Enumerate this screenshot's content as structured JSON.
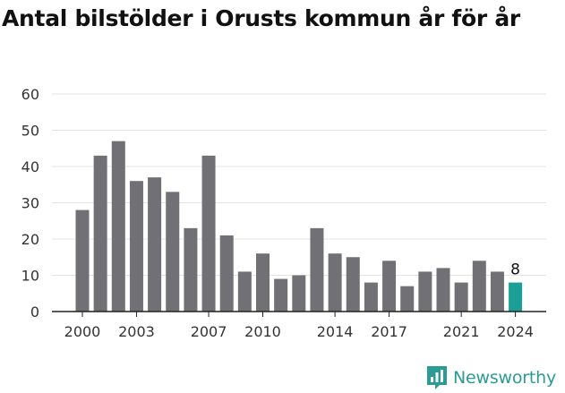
{
  "title": "Antal bilstölder i Orusts kommun år för år",
  "brand": {
    "name": "Newsworthy",
    "icon": "newsworthy-logo-icon",
    "color": "#2a9c94"
  },
  "chart_data": {
    "type": "bar",
    "title": "Antal bilstölder i Orusts kommun år för år",
    "xlabel": "",
    "ylabel": "",
    "categories": [
      "2000",
      "2001",
      "2002",
      "2003",
      "2004",
      "2005",
      "2006",
      "2007",
      "2008",
      "2009",
      "2010",
      "2011",
      "2012",
      "2013",
      "2014",
      "2015",
      "2016",
      "2017",
      "2018",
      "2019",
      "2020",
      "2021",
      "2022",
      "2023",
      "2024"
    ],
    "values": [
      28,
      43,
      47,
      36,
      37,
      33,
      23,
      43,
      21,
      11,
      16,
      9,
      10,
      23,
      16,
      15,
      8,
      14,
      7,
      11,
      12,
      8,
      14,
      11,
      8
    ],
    "x_tick_labels": [
      "2000",
      "2003",
      "2007",
      "2010",
      "2014",
      "2017",
      "2021",
      "2024"
    ],
    "y_ticks": [
      0,
      10,
      20,
      30,
      40,
      50,
      60
    ],
    "ylim": [
      0,
      60
    ],
    "grid": "horizontal",
    "legend": "none",
    "bar_color": "#717074",
    "highlight_color": "#1a9e96",
    "highlight_index": 24,
    "annotations": [
      {
        "category": "2024",
        "text": "8"
      }
    ]
  }
}
